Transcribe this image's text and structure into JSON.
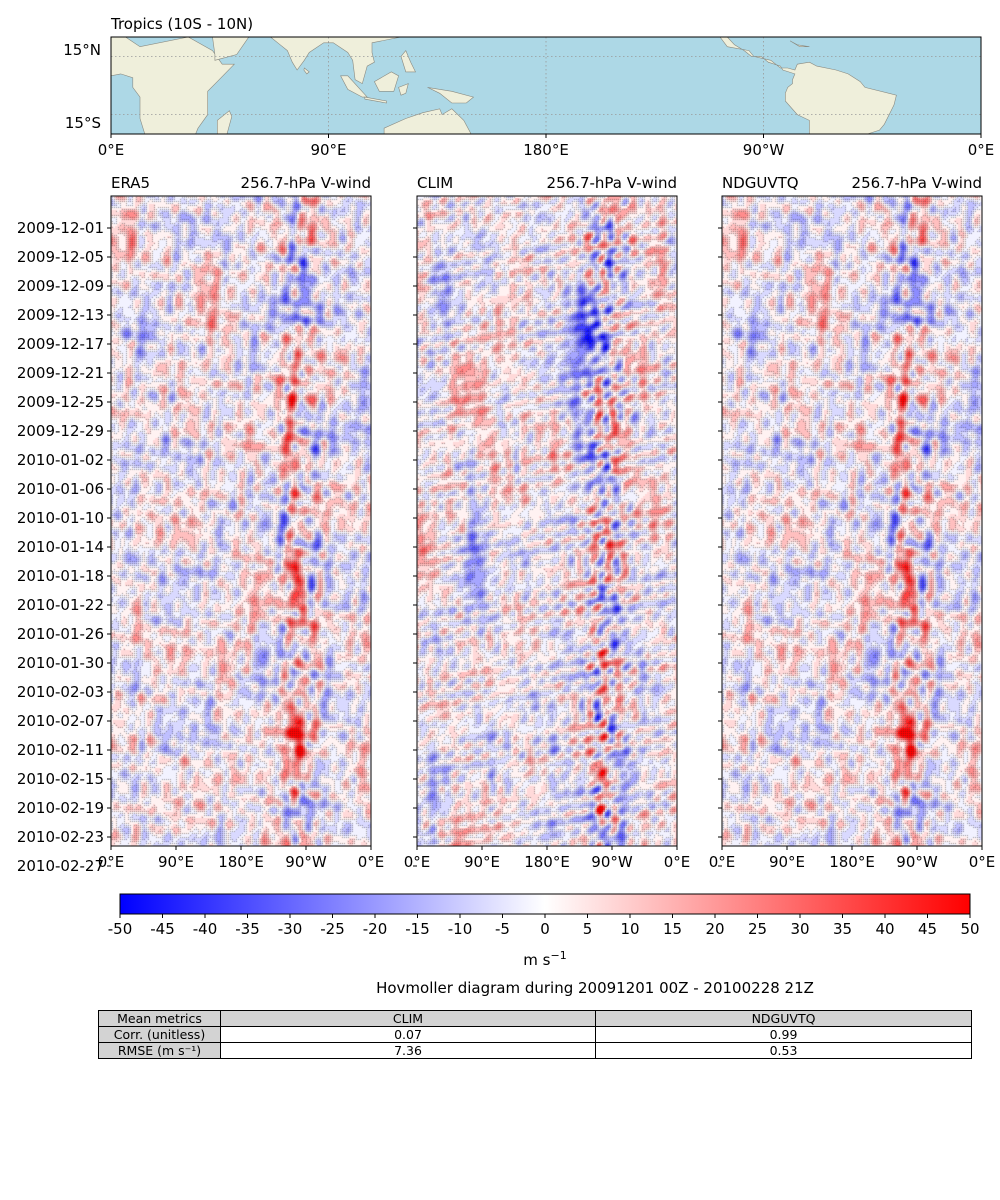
{
  "chart_data": {
    "type": "heatmap",
    "map": {
      "title": "Tropics (10S - 10N)",
      "ytick_labels": [
        "15°N",
        "15°S"
      ],
      "xtick_labels": [
        "0°E",
        "90°E",
        "180°E",
        "90°W",
        "0°E"
      ],
      "lat_range": [
        -25,
        25
      ],
      "lon_range": [
        0,
        360
      ],
      "land_color": "#efefdb",
      "ocean_color": "#add8e6",
      "gridlines": "dotted"
    },
    "panels": [
      {
        "name": "ERA5",
        "subtitle": "256.7-hPa V-wind",
        "seed": 11
      },
      {
        "name": "CLIM",
        "subtitle": "256.7-hPa V-wind",
        "seed": 37
      },
      {
        "name": "NDGUVTQ",
        "subtitle": "256.7-hPa V-wind",
        "seed": 11
      }
    ],
    "panel_xtick_labels": [
      "0°E",
      "90°E",
      "180°E",
      "90°W",
      "0°E"
    ],
    "date_ticks": [
      "2009-12-01",
      "2009-12-05",
      "2009-12-09",
      "2009-12-13",
      "2009-12-17",
      "2009-12-21",
      "2009-12-25",
      "2009-12-29",
      "2010-01-02",
      "2010-01-06",
      "2010-01-10",
      "2010-01-14",
      "2010-01-18",
      "2010-01-22",
      "2010-01-26",
      "2010-01-30",
      "2010-02-03",
      "2010-02-07",
      "2010-02-11",
      "2010-02-15",
      "2010-02-19",
      "2010-02-23",
      "2010-02-27"
    ],
    "time_range": [
      "2009-12-01 00Z",
      "2010-02-28 21Z"
    ],
    "colorbar": {
      "range": [
        -50,
        50
      ],
      "ticks": [
        "-50",
        "-45",
        "-40",
        "-35",
        "-30",
        "-25",
        "-20",
        "-15",
        "-10",
        "-5",
        "0",
        "5",
        "10",
        "15",
        "20",
        "25",
        "30",
        "35",
        "40",
        "45",
        "50"
      ],
      "label": "m s",
      "label_exponent": "−1",
      "colormap": "bwr",
      "color_low": "#0000ff",
      "color_mid": "#ffffff",
      "color_high": "#ff0000"
    },
    "caption": "Hovmoller diagram during 20091201 00Z - 20100228 21Z"
  },
  "metrics_table": {
    "header": [
      "Mean metrics",
      "CLIM",
      "NDGUVTQ"
    ],
    "rows": [
      {
        "label": "Corr. (unitless)",
        "values": [
          "0.07",
          "0.99"
        ]
      },
      {
        "label": "RMSE (m s⁻¹)",
        "values": [
          "7.36",
          "0.53"
        ]
      }
    ]
  }
}
